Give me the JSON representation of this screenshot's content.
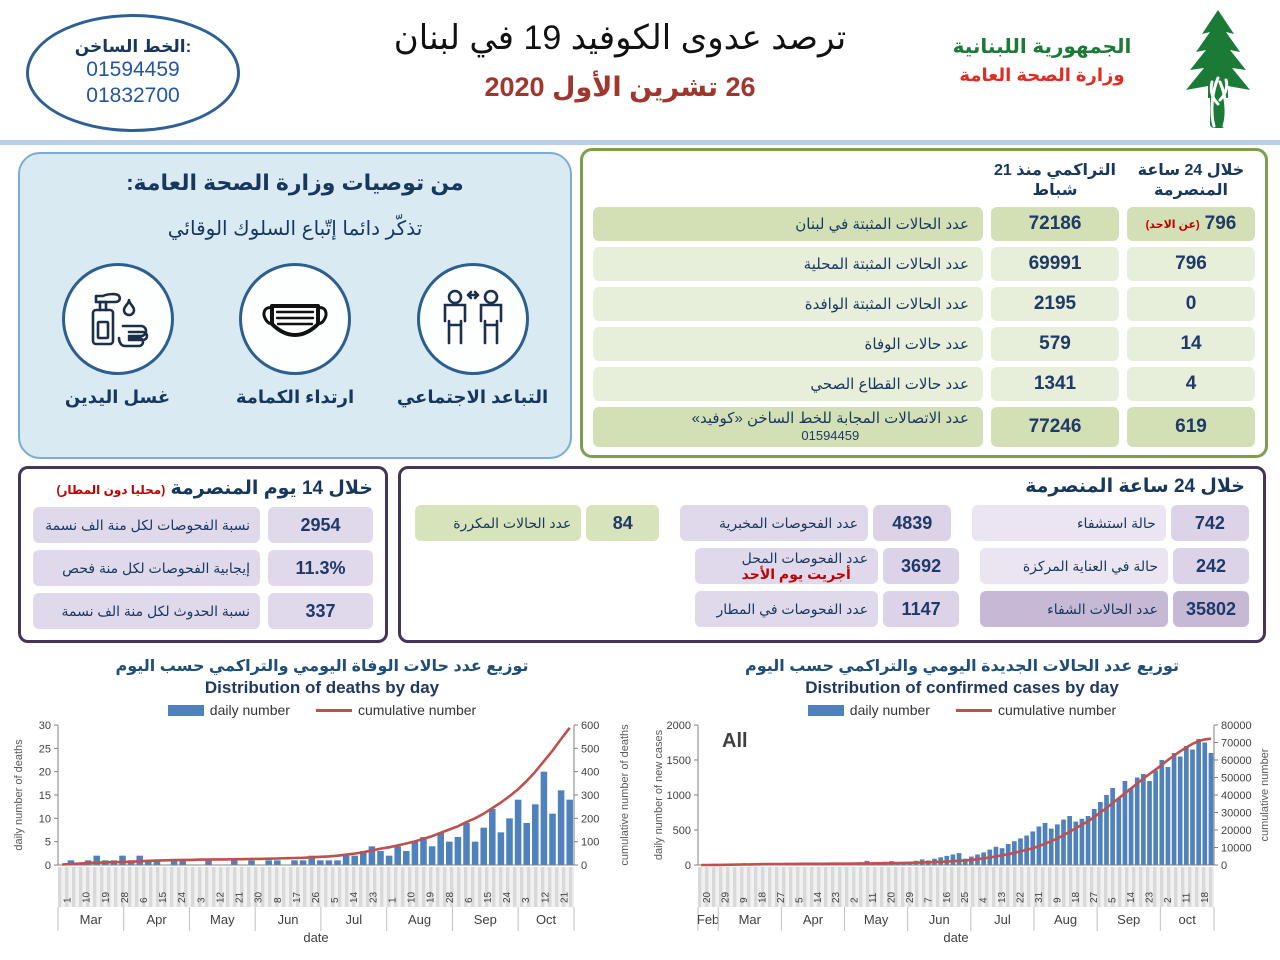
{
  "header": {
    "hotline_label": "الخط الساخن:",
    "hotline_number1": "01594459",
    "hotline_number2": "01832700",
    "title": "ترصد عدوى الكوفيد 19 في لبنان",
    "date": "26 تشرين الأول 2020",
    "ministry_line1": "الجمهورية اللبنانية",
    "ministry_line2": "وزارة الصحة العامة"
  },
  "recommendations": {
    "title": "من توصيات وزارة الصحة العامة:",
    "subtitle": "تذكّر دائما إتّباع السلوك الوقائي",
    "items": [
      {
        "label": "التباعد الاجتماعي",
        "icon": "social-distancing-icon"
      },
      {
        "label": "ارتداء الكمامة",
        "icon": "face-mask-icon"
      },
      {
        "label": "غسل اليدين",
        "icon": "hand-washing-icon"
      }
    ]
  },
  "summary_table": {
    "col_24h": "خلال 24 ساعة المنصرمة",
    "col_cumulative": "التراكمي منذ 21 شباط",
    "rows": [
      {
        "label": "عدد الحالات المثبتة في لبنان",
        "cumulative": "72186",
        "last24": "796",
        "note": "(عن الاحد)"
      },
      {
        "label": "عدد الحالات المثبتة المحلية",
        "cumulative": "69991",
        "last24": "796"
      },
      {
        "label": "عدد الحالات المثبتة الوافدة",
        "cumulative": "2195",
        "last24": "0"
      },
      {
        "label": "عدد حالات الوفاة",
        "cumulative": "579",
        "last24": "14"
      },
      {
        "label": "عدد حالات القطاع الصحي",
        "cumulative": "1341",
        "last24": "4"
      },
      {
        "label": "عدد الاتصالات المجابة  للخط الساخن «كوفيد»",
        "label_sub": "01594459",
        "cumulative": "77246",
        "last24": "619"
      }
    ]
  },
  "stats_14day": {
    "title": "خلال 14 يوم المنصرمة",
    "title_note": "(محليا دون المطار)",
    "rows": [
      {
        "value": "2954",
        "label": "نسبة الفحوصات لكل منة الف نسمة"
      },
      {
        "value": "11.3%",
        "label": "إيجابية الفحوصات لكل منة فحص"
      },
      {
        "value": "337",
        "label": "نسبة الحدوث لكل منة الف نسمة"
      }
    ]
  },
  "stats_24h": {
    "title": "خلال 24 ساعة المنصرمة",
    "hospital": [
      {
        "value": "742",
        "label": "حالة استشفاء"
      },
      {
        "value": "242",
        "label": "حالة في العناية المركزة"
      },
      {
        "value": "35802",
        "label": "عدد الحالات الشفاء"
      }
    ],
    "tests": [
      {
        "value": "4839",
        "label": "عدد الفحوصات المخبرية"
      },
      {
        "value": "3692",
        "label": "عدد الفحوصات المحل",
        "note": "أجريت يوم الأحد"
      },
      {
        "value": "1147",
        "label": "عدد الفحوصات في المطار"
      }
    ],
    "repeated": [
      {
        "value": "84",
        "label": "عدد الحالات المكررة"
      }
    ]
  },
  "chart_data": [
    {
      "type": "bar",
      "title_ar": "توزيع عدد حالات  الوفاة اليومي والتراكمي حسب اليوم",
      "title_en": "Distribution of deaths by day",
      "legend_daily": "daily number",
      "legend_cumulative": "cumulative number",
      "ylabel_left": "daily number of deaths",
      "ylabel_right": "cumulative number of deaths",
      "xlabel": "date",
      "annotation": "",
      "ylim_left": [
        0,
        30
      ],
      "ytick_step_left": 5,
      "ylim_right": [
        0,
        600
      ],
      "ytick_step_right": 100,
      "legend_position": "top",
      "grid": false,
      "colors": {
        "bar": "#4f81bd",
        "line": "#c0504d"
      },
      "day_ticks": [
        "1",
        "10",
        "19",
        "28",
        "6",
        "15",
        "24",
        "3",
        "12",
        "21",
        "30",
        "8",
        "17",
        "26",
        "5",
        "14",
        "23",
        "1",
        "10",
        "19",
        "28",
        "6",
        "15",
        "24",
        "3",
        "12",
        "21"
      ],
      "months": [
        {
          "label": "Mar",
          "span": 1
        },
        {
          "label": "Apr",
          "span": 1
        },
        {
          "label": "May",
          "span": 1
        },
        {
          "label": "Jun",
          "span": 1
        },
        {
          "label": "Jul",
          "span": 1
        },
        {
          "label": "Aug",
          "span": 1
        },
        {
          "label": "Sep",
          "span": 1
        },
        {
          "label": "Oct",
          "span": 0.85
        }
      ],
      "daily": [
        0,
        1,
        0,
        1,
        2,
        1,
        1,
        2,
        1,
        2,
        1,
        1,
        0,
        1,
        1,
        0,
        0,
        1,
        0,
        0,
        1,
        0,
        1,
        0,
        1,
        1,
        0,
        1,
        1,
        2,
        1,
        1,
        1,
        2,
        2,
        3,
        4,
        3,
        2,
        4,
        3,
        5,
        6,
        4,
        7,
        5,
        6,
        9,
        5,
        8,
        12,
        7,
        10,
        14,
        9,
        13,
        20,
        11,
        16,
        14
      ],
      "cumulative": [
        2,
        4,
        6,
        8,
        10,
        11,
        12,
        13,
        14,
        16,
        18,
        19,
        20,
        21,
        22,
        22,
        23,
        23,
        24,
        24,
        25,
        25,
        26,
        26,
        27,
        28,
        29,
        30,
        31,
        33,
        35,
        37,
        40,
        44,
        49,
        55,
        62,
        70,
        76,
        84,
        92,
        101,
        112,
        124,
        138,
        152,
        166,
        184,
        200,
        220,
        244,
        268,
        295,
        325,
        360,
        400,
        445,
        490,
        540,
        588
      ]
    },
    {
      "type": "bar",
      "title_ar": "توزيع عدد الحالات الجديدة اليومي والتراكمي حسب اليوم",
      "title_en": "Distribution of confirmed cases by day",
      "legend_daily": "daily number",
      "legend_cumulative": "cumulative number",
      "ylabel_left": "daily number of new cases",
      "ylabel_right": "cumulative number",
      "xlabel": "date",
      "annotation": "All",
      "ylim_left": [
        0,
        2000
      ],
      "ytick_step_left": 500,
      "ylim_right": [
        0,
        80000
      ],
      "ytick_step_right": 10000,
      "legend_position": "top",
      "grid": false,
      "colors": {
        "bar": "#4f81bd",
        "line": "#c0504d"
      },
      "day_ticks": [
        "20",
        "29",
        "9",
        "18",
        "27",
        "5",
        "14",
        "23",
        "2",
        "11",
        "20",
        "29",
        "7",
        "16",
        "25",
        "4",
        "13",
        "22",
        "31",
        "9",
        "18",
        "27",
        "5",
        "14",
        "23",
        "2",
        "11",
        "18"
      ],
      "months": [
        {
          "label": "Feb",
          "span": 0.32
        },
        {
          "label": "Mar",
          "span": 1
        },
        {
          "label": "Apr",
          "span": 1
        },
        {
          "label": "May",
          "span": 1
        },
        {
          "label": "Jun",
          "span": 1
        },
        {
          "label": "Jul",
          "span": 1
        },
        {
          "label": "Aug",
          "span": 1
        },
        {
          "label": "Sep",
          "span": 1
        },
        {
          "label": "oct",
          "span": 0.85
        }
      ],
      "daily": [
        2,
        4,
        6,
        8,
        12,
        15,
        20,
        25,
        18,
        22,
        30,
        26,
        20,
        15,
        18,
        12,
        20,
        16,
        10,
        14,
        18,
        22,
        16,
        20,
        30,
        25,
        40,
        60,
        35,
        30,
        45,
        55,
        40,
        30,
        45,
        60,
        80,
        65,
        90,
        110,
        130,
        150,
        170,
        90,
        120,
        150,
        180,
        220,
        260,
        240,
        300,
        340,
        380,
        420,
        480,
        550,
        600,
        520,
        580,
        650,
        700,
        620,
        660,
        700,
        800,
        900,
        1000,
        1100,
        950,
        1200,
        1100,
        1250,
        1300,
        1200,
        1350,
        1500,
        1400,
        1600,
        1550,
        1700,
        1650,
        1800,
        1750,
        1600
      ],
      "cumulative": [
        5,
        15,
        30,
        60,
        100,
        150,
        220,
        290,
        350,
        420,
        470,
        520,
        560,
        590,
        620,
        640,
        660,
        680,
        690,
        700,
        710,
        720,
        725,
        740,
        760,
        790,
        830,
        890,
        940,
        980,
        1030,
        1090,
        1140,
        1180,
        1250,
        1330,
        1440,
        1550,
        1680,
        1830,
        2000,
        2200,
        2400,
        2600,
        2900,
        3300,
        3800,
        4300,
        4900,
        5500,
        6200,
        7000,
        7800,
        8600,
        9600,
        10800,
        12200,
        13600,
        15200,
        17000,
        19000,
        21000,
        23000,
        25000,
        27400,
        30000,
        32600,
        35400,
        38200,
        41000,
        43800,
        46600,
        49400,
        52000,
        54500,
        57200,
        60000,
        62500,
        65000,
        67200,
        69200,
        70800,
        71800,
        72186
      ]
    }
  ]
}
